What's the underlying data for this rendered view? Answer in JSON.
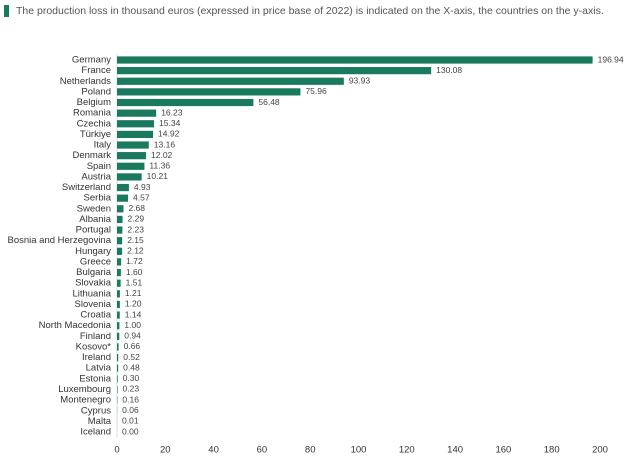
{
  "chart_data": {
    "type": "hbar",
    "title": "The production loss in thousand euros (expressed in price base of 2022) is indicated on the X-axis, the countries on the y-axis.",
    "categories": [
      "Germany",
      "France",
      "Netherlands",
      "Poland",
      "Belgium",
      "Romania",
      "Czechia",
      "Türkiye",
      "Italy",
      "Denmark",
      "Spain",
      "Austria",
      "Switzerland",
      "Serbia",
      "Sweden",
      "Albania",
      "Portugal",
      "Bosnia and Herzegovina",
      "Hungary",
      "Greece",
      "Bulgaria",
      "Slovakia",
      "Lithuania",
      "Slovenia",
      "Croatia",
      "North Macedonia",
      "Finland",
      "Kosovo*",
      "Ireland",
      "Latvia",
      "Estonia",
      "Luxembourg",
      "Montenegro",
      "Cyprus",
      "Malta",
      "Iceland"
    ],
    "values": [
      196.94,
      130.08,
      93.93,
      75.96,
      56.48,
      16.23,
      15.34,
      14.92,
      13.16,
      12.02,
      11.36,
      10.21,
      4.93,
      4.57,
      2.68,
      2.29,
      2.23,
      2.15,
      2.12,
      1.72,
      1.6,
      1.51,
      1.21,
      1.2,
      1.14,
      1.0,
      0.94,
      0.66,
      0.52,
      0.48,
      0.3,
      0.23,
      0.16,
      0.06,
      0.01,
      0.0
    ],
    "value_labels": [
      "196.94",
      "130.08",
      "93.93",
      "75.96",
      "56.48",
      "16.23",
      "15.34",
      "14.92",
      "13.16",
      "12.02",
      "11.36",
      "10.21",
      "4.93",
      "4.57",
      "2.68",
      "2.29",
      "2.23",
      "2.15",
      "2.12",
      "1.72",
      "1.60",
      "1.51",
      "1.21",
      "1.20",
      "1.14",
      "1.00",
      "0.94",
      "0.66",
      "0.52",
      "0.48",
      "0.30",
      "0.23",
      "0.16",
      "0.06",
      "0.01",
      "0.00"
    ],
    "color": "#1a7a60",
    "xlim": [
      0,
      200
    ],
    "xticks": [
      0,
      20,
      40,
      60,
      80,
      100,
      120,
      140,
      160,
      180,
      200
    ],
    "grid": false
  }
}
